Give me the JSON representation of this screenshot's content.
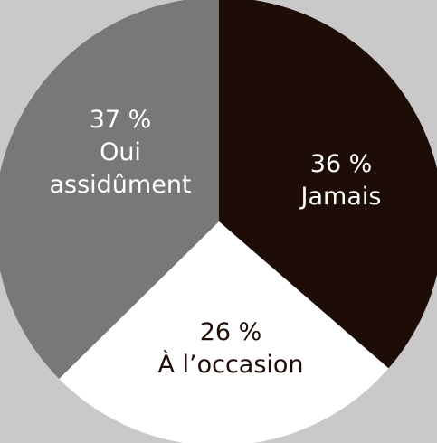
{
  "chart_data": {
    "type": "pie",
    "start": "top",
    "direction": "clockwise",
    "slices": [
      {
        "name": "Jamais",
        "value": 36,
        "value_label": "36 %",
        "color": "#1e0d07",
        "text_color": "#ffffff"
      },
      {
        "name": "À l’occasion",
        "value": 26,
        "value_label": "26 %",
        "color": "#ffffff",
        "text_color": "#1e0d07"
      },
      {
        "name": "Oui assidûment",
        "value": 37,
        "value_label": "37 %",
        "color": "#797876",
        "text_color": "#ffffff"
      }
    ]
  }
}
